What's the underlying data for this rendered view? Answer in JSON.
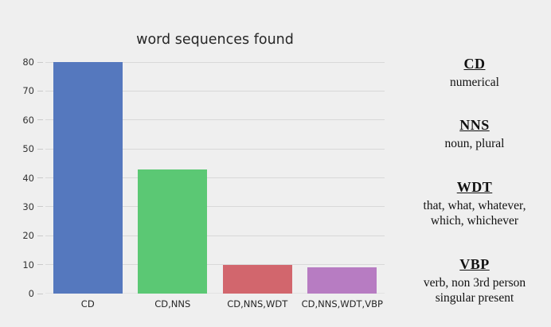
{
  "figure": {
    "background_color": "#efefef"
  },
  "chart_data": {
    "type": "bar",
    "title": "word sequences found",
    "categories": [
      "CD",
      "CD,NNS",
      "CD,NNS,WDT",
      "CD,NNS,WDT,VBP"
    ],
    "values": [
      80,
      43,
      10,
      9
    ],
    "bar_colors": [
      "#5578be",
      "#5bc874",
      "#d2666d",
      "#b77cc2"
    ],
    "xlabel": "",
    "ylabel": "",
    "ylim": [
      0,
      80
    ],
    "yticks": [
      0,
      10,
      20,
      30,
      40,
      50,
      60,
      70,
      80
    ],
    "grid": true,
    "gridline_color": "#d8d8d8",
    "legend_position": "right"
  },
  "legend": {
    "items": [
      {
        "term": "CD",
        "definition_lines": [
          "numerical"
        ]
      },
      {
        "term": "NNS",
        "definition_lines": [
          "noun, plural"
        ]
      },
      {
        "term": "WDT",
        "definition_lines": [
          "that, what, whatever,",
          "which, whichever"
        ]
      },
      {
        "term": "VBP",
        "definition_lines": [
          "verb, non 3rd person",
          "singular present"
        ]
      }
    ]
  }
}
